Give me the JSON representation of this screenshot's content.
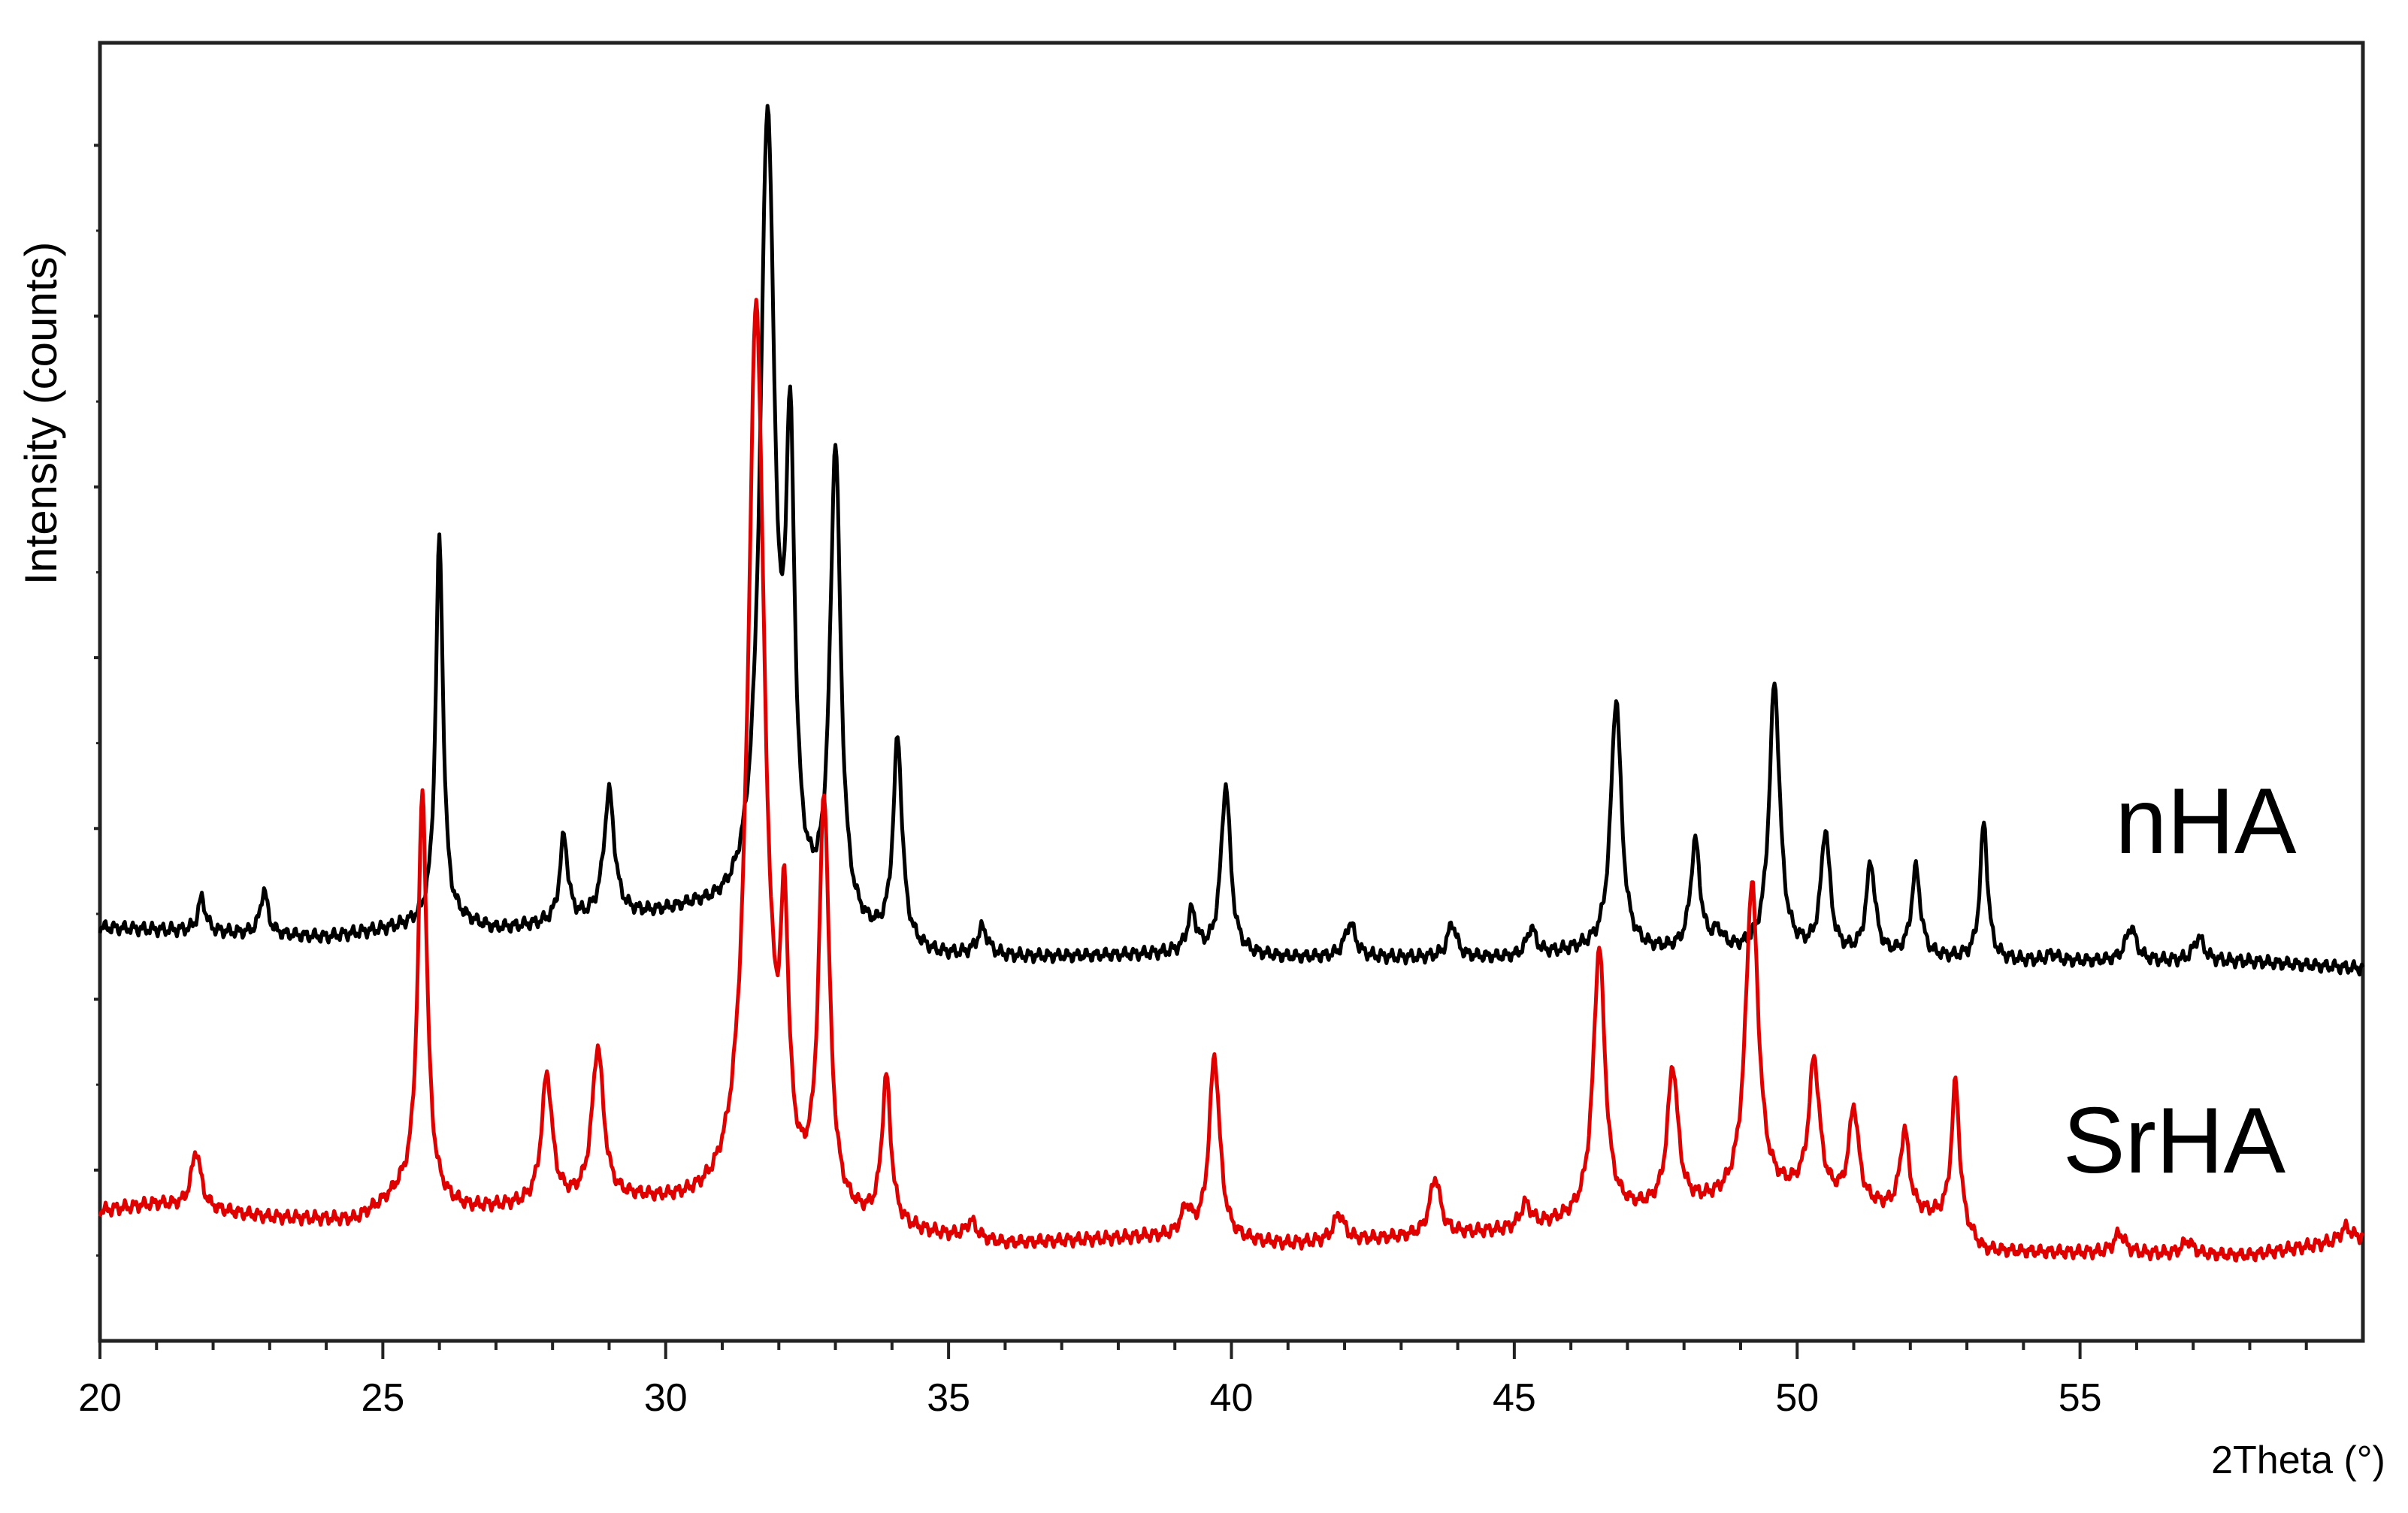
{
  "chart_data": {
    "type": "line",
    "xlabel": "2Theta (°)",
    "ylabel": "Intensity (counts)",
    "xlim": [
      20,
      60
    ],
    "ylim": [
      0,
      3.8
    ],
    "x_ticks": [
      20,
      25,
      30,
      35,
      40,
      45,
      50,
      55
    ],
    "x_minor_step": 1,
    "y_tick_values": [
      0.5,
      1.0,
      1.5,
      2.0,
      2.5,
      3.0,
      3.5
    ],
    "y_tick_labels_shown": false,
    "grid": false,
    "legend": "inline labels at right",
    "series": [
      {
        "name": "nHA",
        "color": "#000000",
        "baseline": [
          [
            20,
            1.21
          ],
          [
            24,
            1.18
          ],
          [
            25.5,
            1.21
          ],
          [
            26.4,
            1.22
          ],
          [
            27,
            1.2
          ],
          [
            30.5,
            1.25
          ],
          [
            34.8,
            1.12
          ],
          [
            36.5,
            1.12
          ],
          [
            39,
            1.13
          ],
          [
            41,
            1.12
          ],
          [
            45,
            1.12
          ],
          [
            46.2,
            1.14
          ],
          [
            49,
            1.13
          ],
          [
            54,
            1.11
          ],
          [
            58,
            1.11
          ],
          [
            60,
            1.09
          ]
        ],
        "peaks": [
          [
            21.8,
            0.1,
            0.14
          ],
          [
            22.9,
            0.13,
            0.14
          ],
          [
            26.0,
            1.13,
            0.14
          ],
          [
            28.2,
            0.25,
            0.15
          ],
          [
            29.0,
            0.37,
            0.2
          ],
          [
            31.8,
            2.33,
            0.28
          ],
          [
            32.2,
            1.25,
            0.17
          ],
          [
            33.0,
            1.4,
            0.2
          ],
          [
            34.1,
            0.6,
            0.17
          ],
          [
            35.6,
            0.08,
            0.2
          ],
          [
            39.3,
            0.12,
            0.17
          ],
          [
            39.9,
            0.5,
            0.18
          ],
          [
            42.1,
            0.1,
            0.2
          ],
          [
            43.9,
            0.1,
            0.17
          ],
          [
            45.3,
            0.08,
            0.17
          ],
          [
            46.8,
            0.74,
            0.2
          ],
          [
            48.2,
            0.32,
            0.18
          ],
          [
            48.6,
            0.05,
            0.2
          ],
          [
            49.6,
            0.79,
            0.2
          ],
          [
            50.5,
            0.36,
            0.17
          ],
          [
            51.3,
            0.27,
            0.17
          ],
          [
            52.1,
            0.26,
            0.17
          ],
          [
            53.3,
            0.4,
            0.14
          ],
          [
            54.5,
            0.02,
            0.2
          ],
          [
            55.9,
            0.1,
            0.2
          ],
          [
            57.1,
            0.07,
            0.2
          ]
        ]
      },
      {
        "name": "SrHA",
        "color": "#e00000",
        "baseline": [
          [
            20,
            0.38
          ],
          [
            21,
            0.4
          ],
          [
            23,
            0.36
          ],
          [
            24.5,
            0.35
          ],
          [
            25.3,
            0.42
          ],
          [
            26.5,
            0.38
          ],
          [
            29.5,
            0.4
          ],
          [
            33.8,
            0.32
          ],
          [
            36,
            0.28
          ],
          [
            38.5,
            0.3
          ],
          [
            41,
            0.28
          ],
          [
            45,
            0.32
          ],
          [
            46.5,
            0.36
          ],
          [
            50,
            0.42
          ],
          [
            52.7,
            0.35
          ],
          [
            53.3,
            0.26
          ],
          [
            58,
            0.25
          ],
          [
            60,
            0.3
          ]
        ],
        "peaks": [
          [
            21.7,
            0.17,
            0.18
          ],
          [
            25.7,
            1.2,
            0.17
          ],
          [
            27.9,
            0.38,
            0.2
          ],
          [
            28.8,
            0.45,
            0.22
          ],
          [
            31.6,
            2.65,
            0.32
          ],
          [
            32.1,
            0.7,
            0.15
          ],
          [
            32.8,
            1.2,
            0.2
          ],
          [
            33.9,
            0.43,
            0.17
          ],
          [
            35.4,
            0.05,
            0.2
          ],
          [
            39.2,
            0.08,
            0.2
          ],
          [
            39.7,
            0.54,
            0.2
          ],
          [
            41.9,
            0.08,
            0.2
          ],
          [
            43.6,
            0.17,
            0.2
          ],
          [
            45.2,
            0.07,
            0.2
          ],
          [
            46.5,
            0.79,
            0.22
          ],
          [
            47.8,
            0.41,
            0.2
          ],
          [
            49.2,
            0.93,
            0.24
          ],
          [
            50.3,
            0.4,
            0.2
          ],
          [
            51.0,
            0.28,
            0.18
          ],
          [
            51.9,
            0.24,
            0.17
          ],
          [
            52.8,
            0.42,
            0.15
          ],
          [
            55.7,
            0.06,
            0.2
          ],
          [
            56.9,
            0.04,
            0.2
          ],
          [
            59.7,
            0.04,
            0.2
          ]
        ]
      }
    ]
  }
}
